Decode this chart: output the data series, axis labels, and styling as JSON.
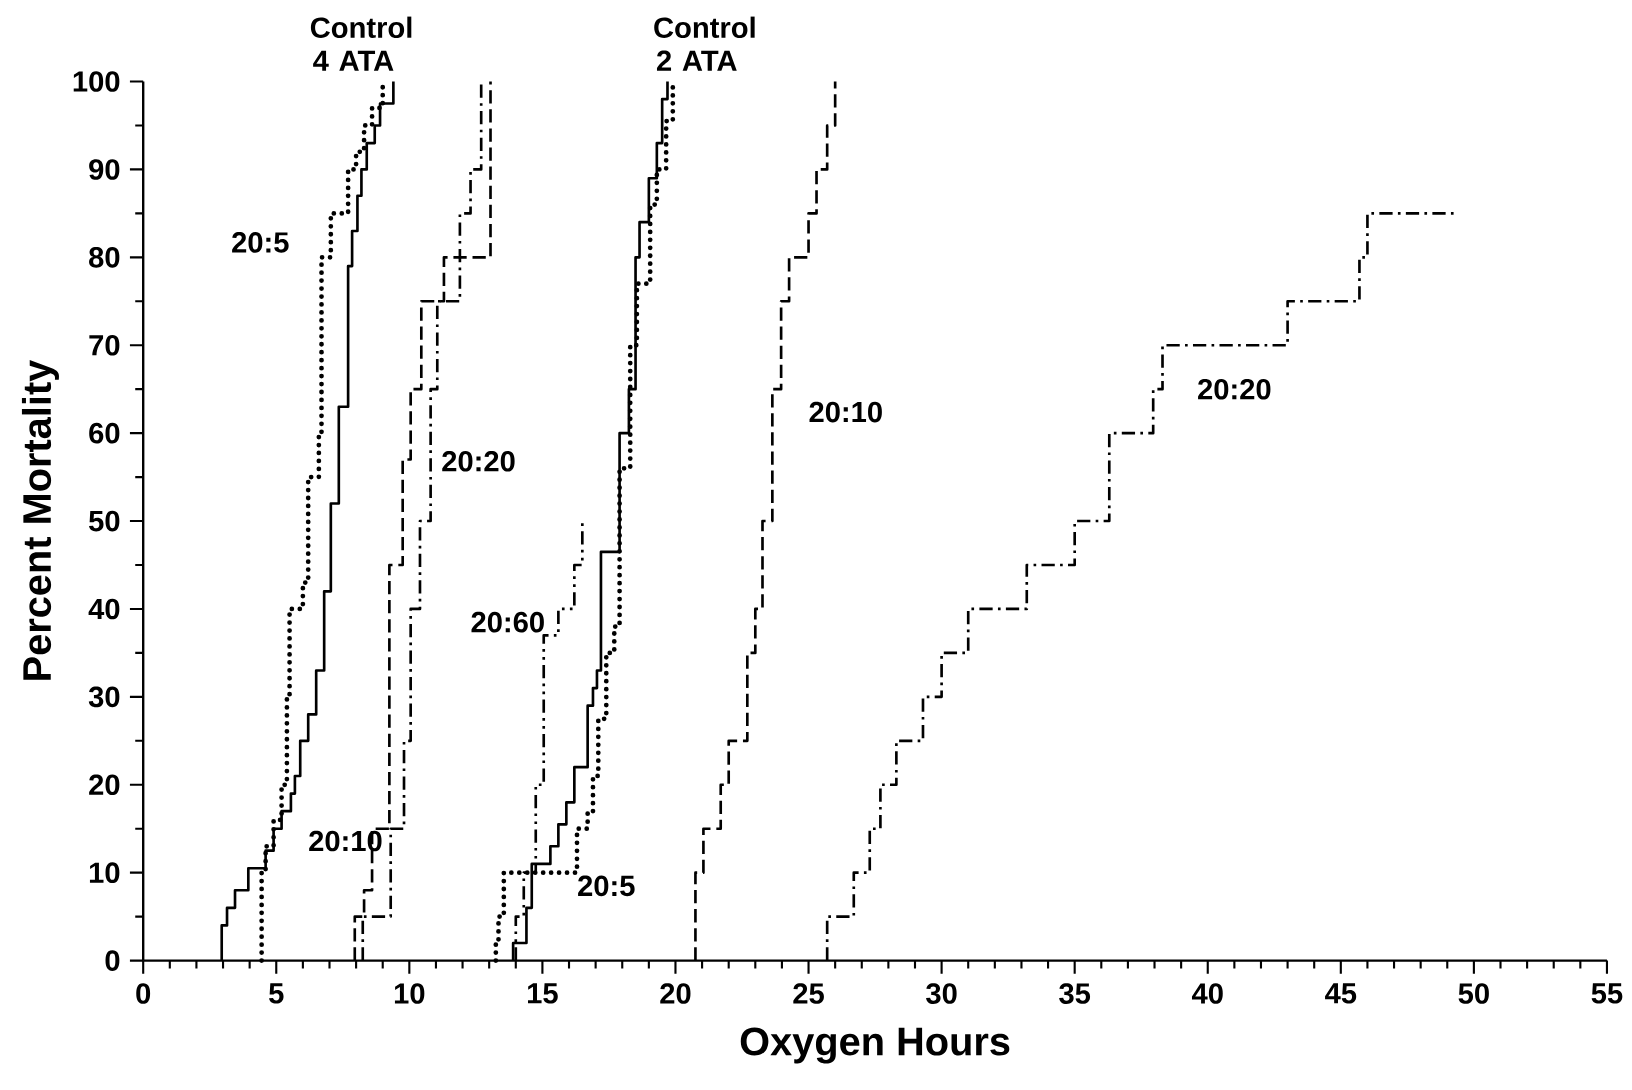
{
  "chart_data": {
    "type": "step",
    "xlabel": "Oxygen Hours",
    "ylabel": "Percent Mortality",
    "xlim": [
      0,
      55
    ],
    "ylim": [
      0,
      100
    ],
    "xticks": [
      0,
      5,
      10,
      15,
      20,
      25,
      30,
      35,
      40,
      45,
      50,
      55
    ],
    "yticks": [
      0,
      10,
      20,
      30,
      40,
      50,
      60,
      70,
      80,
      90,
      100
    ],
    "series": [
      {
        "name": "Control 4 ATA",
        "color": "#000000",
        "line_style": "solid",
        "x": [
          2.95,
          2.95,
          3.15,
          3.45,
          3.95,
          4.6,
          4.9,
          5.2,
          5.55,
          5.7,
          5.9,
          6.2,
          6.5,
          6.8,
          7.05,
          7.35,
          7.7,
          7.85,
          8.05,
          8.2,
          8.4,
          8.7,
          8.9,
          9.4
        ],
        "values": [
          0,
          4,
          6,
          8,
          10.5,
          12.5,
          15,
          17,
          19,
          21,
          25,
          28,
          33,
          42,
          52,
          63,
          79,
          83,
          87,
          90,
          93,
          95,
          97.5,
          100
        ]
      },
      {
        "name": "20:5",
        "color": "#000000",
        "line_style": "dotted",
        "x": [
          4.45,
          4.45,
          4.6,
          4.9,
          5.2,
          5.4,
          5.5,
          6.0,
          6.2,
          6.6,
          6.7,
          7.05,
          7.7,
          8.0,
          8.3,
          8.6,
          9.0
        ],
        "values": [
          0,
          10,
          13,
          16,
          20,
          30,
          40,
          43,
          55,
          60,
          80,
          85,
          90,
          92,
          95,
          97,
          100
        ]
      },
      {
        "name": "20:10",
        "color": "#000000",
        "line_style": "dashed",
        "x": [
          7.95,
          7.95,
          8.3,
          8.6,
          9.25,
          9.75,
          10.05,
          10.45,
          11.3,
          13.05
        ],
        "values": [
          0,
          5,
          8,
          15,
          45,
          57,
          65,
          75,
          80,
          100
        ]
      },
      {
        "name": "20:20",
        "color": "#000000",
        "line_style": "dashdot",
        "x": [
          8.25,
          8.25,
          9.3,
          9.8,
          10.05,
          10.4,
          10.8,
          11.05,
          11.9,
          12.3,
          12.7
        ],
        "values": [
          0,
          5,
          15,
          25,
          40,
          50,
          65,
          75,
          85,
          90,
          100
        ]
      },
      {
        "name": "20:60",
        "color": "#000000",
        "line_style": "dashdotdot",
        "x": [
          14.0,
          14.0,
          14.3,
          14.75,
          15.05,
          15.6,
          16.2,
          16.5
        ],
        "values": [
          0,
          5,
          10,
          20,
          37,
          40,
          45,
          50
        ]
      },
      {
        "name": "Control 2 ATA",
        "color": "#000000",
        "line_style": "solid",
        "x": [
          13.9,
          13.9,
          14.4,
          14.6,
          15.3,
          15.6,
          15.9,
          16.2,
          16.7,
          16.9,
          17.05,
          17.2,
          17.9,
          18.25,
          18.5,
          18.65,
          19.0,
          19.3,
          19.5,
          19.7
        ],
        "values": [
          0,
          2,
          6,
          11,
          13,
          15.5,
          18,
          22,
          29,
          31,
          33,
          46.5,
          60,
          65,
          80,
          84,
          89,
          93,
          98,
          100
        ]
      },
      {
        "name": "20:5",
        "color": "#000000",
        "line_style": "dotted",
        "x": [
          13.25,
          13.25,
          13.35,
          13.55,
          16.3,
          16.7,
          16.9,
          17.1,
          17.4,
          17.7,
          17.9,
          18.3,
          18.55,
          19.05,
          19.3,
          19.65,
          19.9
        ],
        "values": [
          0,
          2,
          5,
          10,
          15,
          17,
          21,
          27.5,
          35,
          38,
          56,
          70,
          77,
          86,
          90,
          95.5,
          100
        ]
      },
      {
        "name": "20:10",
        "color": "#000000",
        "line_style": "dashed",
        "x": [
          20.75,
          20.75,
          21.05,
          21.7,
          22.0,
          22.7,
          23.0,
          23.27,
          23.64,
          23.97,
          24.27,
          25.0,
          25.3,
          25.7,
          26.0
        ],
        "values": [
          0,
          10,
          15,
          20,
          25,
          35,
          40,
          50,
          65,
          75,
          80,
          85,
          90,
          95,
          100
        ]
      },
      {
        "name": "20:20",
        "color": "#000000",
        "line_style": "dashdot",
        "x": [
          25.7,
          25.7,
          26.7,
          27.3,
          27.7,
          28.3,
          29.3,
          30.0,
          31.0,
          33.2,
          35.0,
          36.3,
          37.95,
          38.3,
          43.0,
          45.7,
          46.0,
          49.3
        ],
        "values": [
          0,
          5,
          10,
          15,
          20,
          25,
          30,
          35,
          40,
          45,
          50,
          60,
          65,
          70,
          75,
          80,
          85,
          85
        ]
      }
    ]
  }
}
